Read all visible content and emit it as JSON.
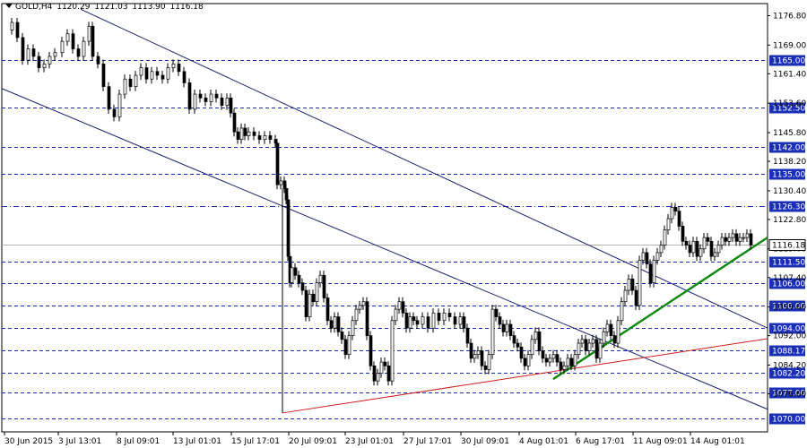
{
  "header": {
    "symbol": "GOLD,H4",
    "open": "1120.29",
    "high": "1121.03",
    "low": "1113.90",
    "close": "1116.18"
  },
  "chart_data": {
    "type": "candlestick",
    "ylim": [
      1066.5,
      1180.0
    ],
    "y_ticks": [
      "1176.80",
      "1169.00",
      "1161.40",
      "1153.60",
      "1145.80",
      "1138.20",
      "1130.40",
      "1122.80",
      "1115.00",
      "1107.40",
      "1099.60",
      "1092.00",
      "1084.20",
      "1076.60"
    ],
    "level_labels": [
      "1165.00",
      "1152.50",
      "1142.00",
      "1135.00",
      "1126.30",
      "1111.50",
      "1106.00",
      "1100.00",
      "1094.00",
      "1088.17",
      "1082.20",
      "1077.00",
      "1070.00"
    ],
    "last_price": "1116.18",
    "x_tick_labels": [
      "30 Jun 2015",
      "3 Jul 13:01",
      "8 Jul 09:01",
      "13 Jul 01:01",
      "15 Jul 17:01",
      "20 Jul 09:01",
      "23 Jul 01:01",
      "27 Jul 17:01",
      "30 Jul 09:01",
      "4 Aug 01:01",
      "6 Aug 17:01",
      "11 Aug 09:01",
      "14 Aug 01:01"
    ],
    "close_path": [
      [
        0,
        1173
      ],
      [
        8,
        1175
      ],
      [
        14,
        1171
      ],
      [
        20,
        1165
      ],
      [
        26,
        1168
      ],
      [
        32,
        1166
      ],
      [
        38,
        1163
      ],
      [
        44,
        1164
      ],
      [
        50,
        1166
      ],
      [
        56,
        1167
      ],
      [
        64,
        1170
      ],
      [
        70,
        1172
      ],
      [
        76,
        1168
      ],
      [
        82,
        1166
      ],
      [
        88,
        1170
      ],
      [
        94,
        1174
      ],
      [
        98,
        1166
      ],
      [
        104,
        1164
      ],
      [
        110,
        1158
      ],
      [
        116,
        1152
      ],
      [
        122,
        1150
      ],
      [
        128,
        1156
      ],
      [
        134,
        1160
      ],
      [
        140,
        1158
      ],
      [
        146,
        1161
      ],
      [
        152,
        1163
      ],
      [
        158,
        1160
      ],
      [
        164,
        1162
      ],
      [
        170,
        1161
      ],
      [
        176,
        1160
      ],
      [
        182,
        1163
      ],
      [
        188,
        1164
      ],
      [
        194,
        1162
      ],
      [
        200,
        1159
      ],
      [
        206,
        1152
      ],
      [
        212,
        1156
      ],
      [
        218,
        1155
      ],
      [
        224,
        1154
      ],
      [
        230,
        1156
      ],
      [
        236,
        1155
      ],
      [
        242,
        1153
      ],
      [
        248,
        1155
      ],
      [
        252,
        1151
      ],
      [
        256,
        1146
      ],
      [
        260,
        1144
      ],
      [
        264,
        1147
      ],
      [
        268,
        1145
      ],
      [
        272,
        1146
      ],
      [
        278,
        1145
      ],
      [
        284,
        1144
      ],
      [
        290,
        1145
      ],
      [
        296,
        1144
      ],
      [
        302,
        1143
      ],
      [
        304,
        1132
      ],
      [
        308,
        1133
      ],
      [
        312,
        1131
      ],
      [
        314,
        1128
      ],
      [
        316,
        1113
      ],
      [
        318,
        1106
      ],
      [
        320,
        1110
      ],
      [
        324,
        1108
      ],
      [
        328,
        1106
      ],
      [
        332,
        1104
      ],
      [
        336,
        1097
      ],
      [
        340,
        1103
      ],
      [
        344,
        1101
      ],
      [
        348,
        1106
      ],
      [
        352,
        1108
      ],
      [
        356,
        1102
      ],
      [
        360,
        1096
      ],
      [
        364,
        1094
      ],
      [
        368,
        1097
      ],
      [
        372,
        1093
      ],
      [
        376,
        1091
      ],
      [
        380,
        1087
      ],
      [
        384,
        1092
      ],
      [
        388,
        1096
      ],
      [
        392,
        1099
      ],
      [
        396,
        1100
      ],
      [
        400,
        1101
      ],
      [
        404,
        1092
      ],
      [
        408,
        1084
      ],
      [
        412,
        1080
      ],
      [
        416,
        1082
      ],
      [
        420,
        1085
      ],
      [
        424,
        1084
      ],
      [
        428,
        1080
      ],
      [
        432,
        1096
      ],
      [
        436,
        1099
      ],
      [
        440,
        1101
      ],
      [
        444,
        1098
      ],
      [
        448,
        1094
      ],
      [
        452,
        1097
      ],
      [
        456,
        1096
      ],
      [
        460,
        1095
      ],
      [
        466,
        1097
      ],
      [
        472,
        1094
      ],
      [
        478,
        1098
      ],
      [
        484,
        1096
      ],
      [
        490,
        1098
      ],
      [
        496,
        1097
      ],
      [
        502,
        1095
      ],
      [
        508,
        1097
      ],
      [
        512,
        1094
      ],
      [
        516,
        1090
      ],
      [
        520,
        1086
      ],
      [
        524,
        1087
      ],
      [
        528,
        1088
      ],
      [
        532,
        1084
      ],
      [
        536,
        1083
      ],
      [
        540,
        1087
      ],
      [
        544,
        1099
      ],
      [
        548,
        1097
      ],
      [
        552,
        1095
      ],
      [
        556,
        1093
      ],
      [
        560,
        1095
      ],
      [
        564,
        1092
      ],
      [
        568,
        1090
      ],
      [
        572,
        1089
      ],
      [
        576,
        1086
      ],
      [
        580,
        1084
      ],
      [
        584,
        1087
      ],
      [
        588,
        1091
      ],
      [
        592,
        1093
      ],
      [
        596,
        1088
      ],
      [
        600,
        1086
      ],
      [
        604,
        1085
      ],
      [
        608,
        1086
      ],
      [
        612,
        1087
      ],
      [
        616,
        1085
      ],
      [
        620,
        1083
      ],
      [
        624,
        1084
      ],
      [
        628,
        1086
      ],
      [
        632,
        1084
      ],
      [
        636,
        1087
      ],
      [
        640,
        1090
      ],
      [
        644,
        1091
      ],
      [
        648,
        1088
      ],
      [
        652,
        1090
      ],
      [
        656,
        1091
      ],
      [
        660,
        1086
      ],
      [
        664,
        1090
      ],
      [
        668,
        1093
      ],
      [
        672,
        1095
      ],
      [
        676,
        1092
      ],
      [
        680,
        1090
      ],
      [
        684,
        1096
      ],
      [
        688,
        1101
      ],
      [
        692,
        1104
      ],
      [
        696,
        1107
      ],
      [
        700,
        1104
      ],
      [
        704,
        1100
      ],
      [
        708,
        1112
      ],
      [
        712,
        1114
      ],
      [
        716,
        1111
      ],
      [
        720,
        1106
      ],
      [
        724,
        1112
      ],
      [
        728,
        1114
      ],
      [
        732,
        1116
      ],
      [
        736,
        1120
      ],
      [
        740,
        1123
      ],
      [
        744,
        1126
      ],
      [
        748,
        1125
      ],
      [
        752,
        1121
      ],
      [
        756,
        1117
      ],
      [
        760,
        1116
      ],
      [
        764,
        1114
      ],
      [
        768,
        1117
      ],
      [
        772,
        1113
      ],
      [
        776,
        1115
      ],
      [
        780,
        1118
      ],
      [
        784,
        1117
      ],
      [
        788,
        1113
      ],
      [
        792,
        1114
      ],
      [
        796,
        1116
      ],
      [
        800,
        1118
      ],
      [
        804,
        1117
      ],
      [
        808,
        1118
      ],
      [
        812,
        1119
      ],
      [
        816,
        1117
      ],
      [
        820,
        1118
      ],
      [
        824,
        1118
      ],
      [
        828,
        1119
      ],
      [
        832,
        1116
      ]
    ]
  }
}
